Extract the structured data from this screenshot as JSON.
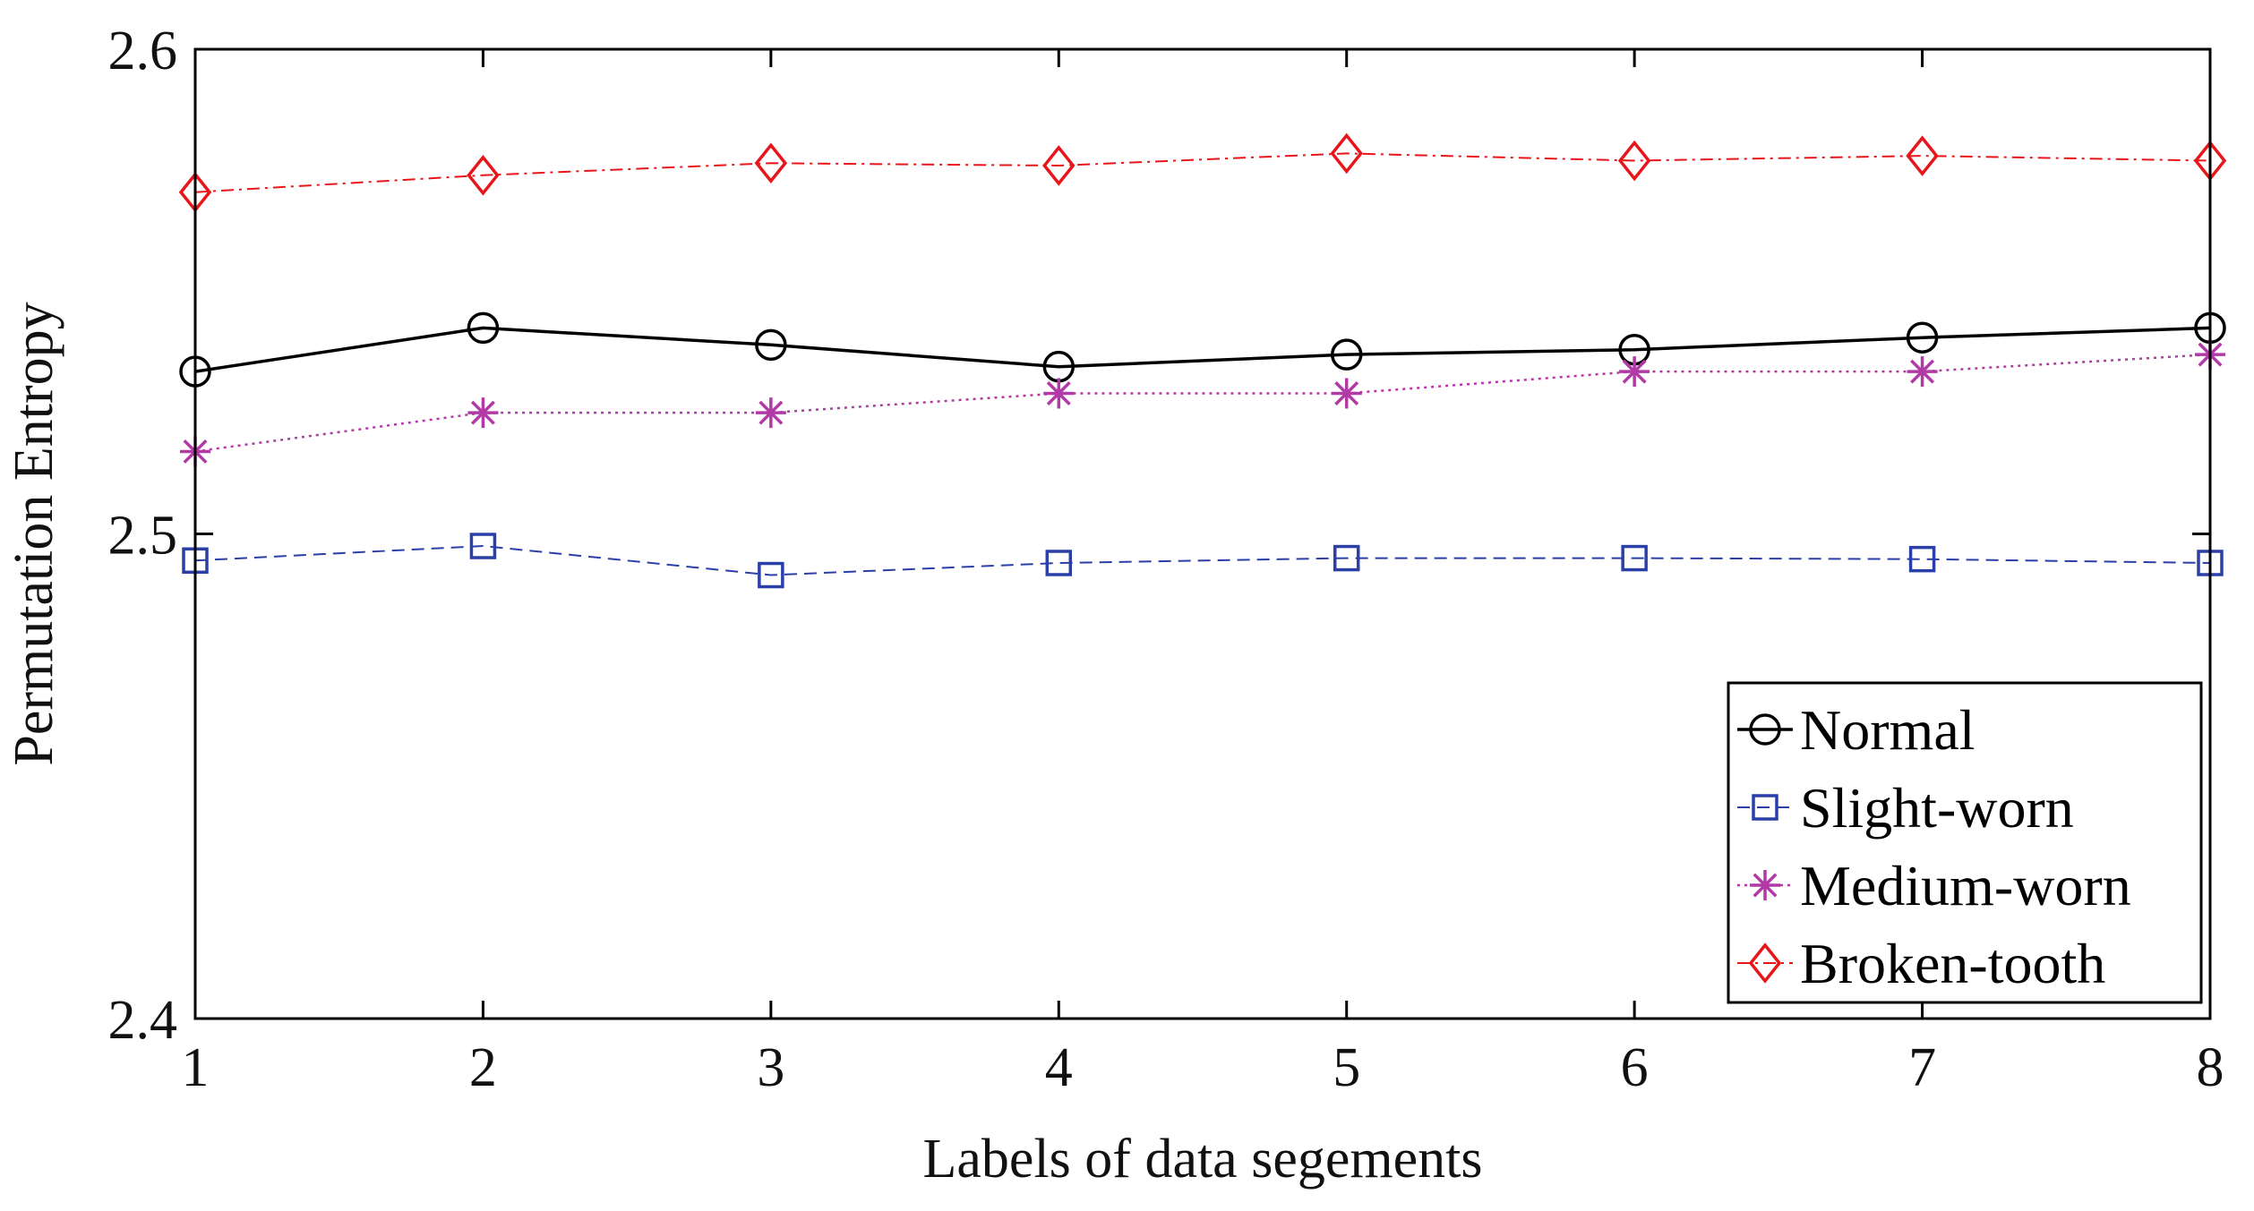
{
  "chart_data": {
    "type": "line",
    "title": "",
    "xlabel": "Labels of data segements",
    "ylabel": "Permutation Entropy",
    "x": [
      1,
      2,
      3,
      4,
      5,
      6,
      7,
      8
    ],
    "xlim": [
      1,
      8
    ],
    "ylim": [
      2.4,
      2.6
    ],
    "x_ticks": [
      "1",
      "2",
      "3",
      "4",
      "5",
      "6",
      "7",
      "8"
    ],
    "y_ticks": [
      "2.4",
      "2.5",
      "2.6"
    ],
    "y_tick_values": [
      2.4,
      2.5,
      2.6
    ],
    "grid": false,
    "legend_position": "bottom-right",
    "series": [
      {
        "name": "Normal",
        "values": [
          2.5335,
          2.5425,
          2.539,
          2.5345,
          2.537,
          2.538,
          2.5405,
          2.5425
        ],
        "color": "#000000",
        "marker": "circle",
        "line_style": "solid"
      },
      {
        "name": "Slight-worn",
        "values": [
          2.4945,
          2.4975,
          2.4915,
          2.494,
          2.495,
          2.495,
          2.4948,
          2.494
        ],
        "color": "#2b3fa8",
        "marker": "square",
        "line_style": "dashed"
      },
      {
        "name": "Medium-worn",
        "values": [
          2.517,
          2.525,
          2.525,
          2.529,
          2.529,
          2.5335,
          2.5335,
          2.537
        ],
        "color": "#b23aa6",
        "marker": "asterisk",
        "line_style": "dotted"
      },
      {
        "name": "Broken-tooth",
        "values": [
          2.5705,
          2.574,
          2.5765,
          2.576,
          2.5785,
          2.577,
          2.578,
          2.577
        ],
        "color": "#e8161b",
        "marker": "diamond",
        "line_style": "dashdot"
      }
    ]
  }
}
